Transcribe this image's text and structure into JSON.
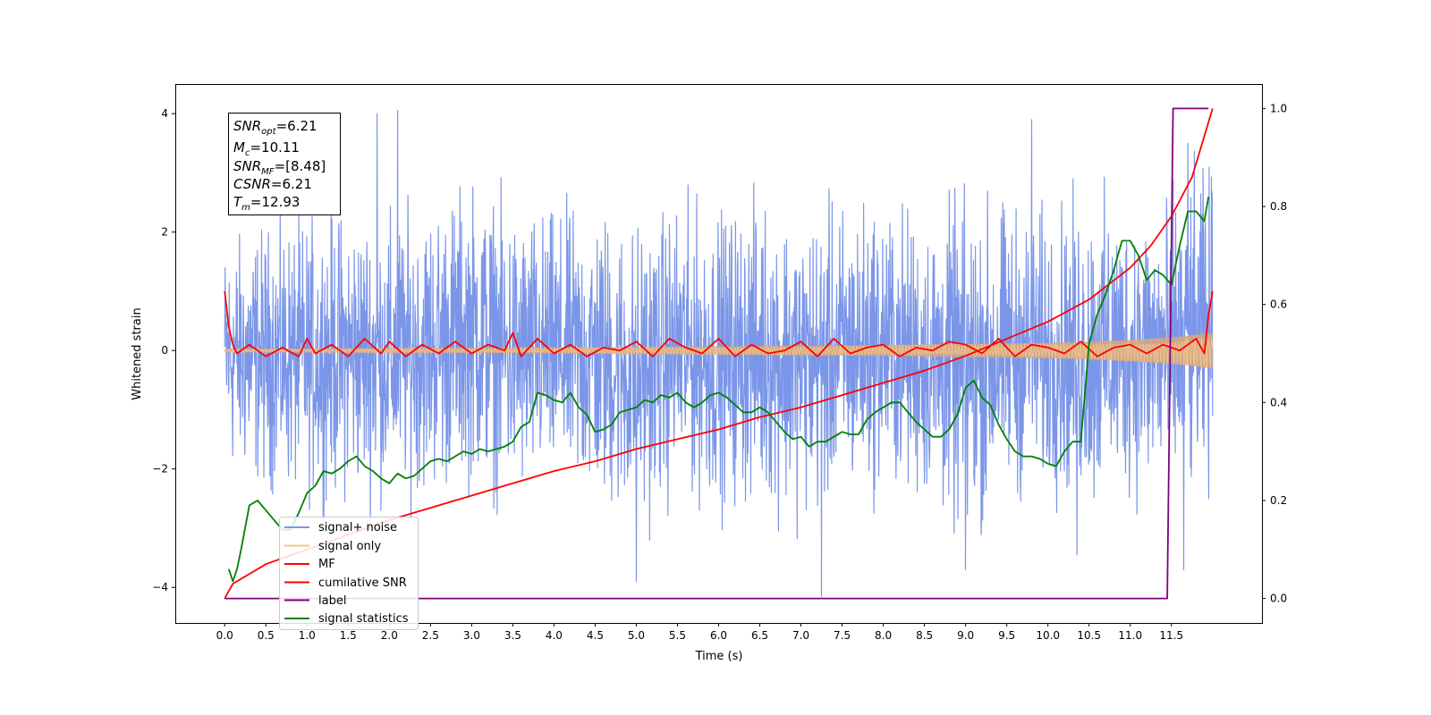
{
  "chart_data": {
    "type": "line",
    "xlabel": "Time (s)",
    "ylabel": "Whitened strain",
    "xlim": [
      -0.6,
      12.6
    ],
    "ylim": [
      -4.6,
      4.5
    ],
    "y2lim": [
      -0.05,
      1.05
    ],
    "x_ticks": [
      0.0,
      0.5,
      1.0,
      1.5,
      2.0,
      2.5,
      3.0,
      3.5,
      4.0,
      4.5,
      5.0,
      5.5,
      6.0,
      6.5,
      7.0,
      7.5,
      8.0,
      8.5,
      9.0,
      9.5,
      10.0,
      10.5,
      11.0,
      11.5
    ],
    "x_tick_labels": [
      "0.0",
      "0.5",
      "1.0",
      "1.5",
      "2.0",
      "2.5",
      "3.0",
      "3.5",
      "4.0",
      "4.5",
      "5.0",
      "5.5",
      "6.0",
      "6.5",
      "7.0",
      "7.5",
      "8.0",
      "8.5",
      "9.0",
      "9.5",
      "10.0",
      "10.5",
      "11.0",
      "11.5"
    ],
    "y_ticks": [
      -4,
      -2,
      0,
      2,
      4
    ],
    "y_tick_labels": [
      "−4",
      "−2",
      "0",
      "2",
      "4"
    ],
    "y2_ticks": [
      0.0,
      0.2,
      0.4,
      0.6,
      0.8,
      1.0
    ],
    "y2_tick_labels": [
      "0.0",
      "0.2",
      "0.4",
      "0.6",
      "0.8",
      "1.0"
    ],
    "grid": false,
    "legend_placement": "lower-left",
    "annotation": [
      {
        "var": "SNR",
        "sub": "opt",
        "value": "=6.21"
      },
      {
        "var": "M",
        "sub": "c",
        "value": "=10.11"
      },
      {
        "var": "SNR",
        "sub": "MF",
        "value": "=[8.48]"
      },
      {
        "var": "CSNR",
        "sub": "",
        "value": "=6.21"
      },
      {
        "var": "T",
        "sub": "m",
        "value": "=12.93"
      }
    ],
    "series": [
      {
        "name": "signal+ noise",
        "color": "#7b96e8",
        "axis": "left",
        "x_range": [
          0.0,
          12.0
        ],
        "band_upper": [
          2.2,
          2.5,
          2.6,
          2.8,
          2.7,
          2.9,
          3.3,
          2.8,
          2.7,
          2.9,
          2.6,
          2.9,
          2.8,
          3.0,
          2.8,
          2.9,
          3.0,
          2.7,
          3.1,
          2.9,
          2.8,
          3.1,
          2.9,
          3.1,
          3.6
        ],
        "band_lower": [
          -2.4,
          -2.7,
          -2.9,
          -2.9,
          -2.9,
          -2.8,
          -2.7,
          -3.0,
          -2.8,
          -3.1,
          -3.5,
          -2.9,
          -3.1,
          -3.0,
          -3.3,
          -3.0,
          -2.8,
          -3.0,
          -3.8,
          -2.9,
          -2.9,
          -3.2,
          -2.9,
          -3.1,
          -3.0
        ],
        "peaks_max": [
          [
            1.85,
            4.0
          ],
          [
            2.1,
            4.05
          ],
          [
            9.8,
            3.9
          ],
          [
            11.7,
            3.5
          ]
        ],
        "peaks_min": [
          [
            5.0,
            -3.9
          ],
          [
            7.25,
            -4.15
          ],
          [
            9.0,
            -3.7
          ],
          [
            10.35,
            -3.45
          ],
          [
            11.65,
            -3.7
          ]
        ]
      },
      {
        "name": "signal only",
        "color": "#f6c48a",
        "axis": "left",
        "x": [
          0.0,
          1.0,
          2.0,
          3.0,
          4.0,
          5.0,
          6.0,
          7.0,
          8.0,
          9.0,
          10.0,
          10.5,
          11.0,
          11.5,
          12.0
        ],
        "amplitude": [
          0.03,
          0.03,
          0.04,
          0.04,
          0.05,
          0.06,
          0.07,
          0.08,
          0.09,
          0.11,
          0.13,
          0.15,
          0.18,
          0.22,
          0.3
        ]
      },
      {
        "name": "MF",
        "color": "#ff0000",
        "axis": "left",
        "x": [
          0.0,
          0.05,
          0.1,
          0.15,
          0.3,
          0.5,
          0.7,
          0.9,
          1.0,
          1.1,
          1.3,
          1.5,
          1.7,
          1.9,
          2.0,
          2.2,
          2.4,
          2.6,
          2.8,
          3.0,
          3.2,
          3.4,
          3.5,
          3.6,
          3.8,
          4.0,
          4.2,
          4.4,
          4.6,
          4.8,
          5.0,
          5.2,
          5.4,
          5.6,
          5.8,
          6.0,
          6.2,
          6.4,
          6.6,
          6.8,
          7.0,
          7.2,
          7.4,
          7.6,
          7.8,
          8.0,
          8.2,
          8.4,
          8.6,
          8.8,
          9.0,
          9.2,
          9.4,
          9.6,
          9.8,
          10.0,
          10.2,
          10.4,
          10.6,
          10.8,
          11.0,
          11.2,
          11.4,
          11.6,
          11.8,
          11.9,
          11.95,
          12.0
        ],
        "y": [
          1.0,
          0.4,
          0.1,
          -0.05,
          0.1,
          -0.1,
          0.05,
          -0.1,
          0.2,
          -0.05,
          0.1,
          -0.1,
          0.2,
          -0.05,
          0.15,
          -0.1,
          0.1,
          -0.05,
          0.15,
          -0.05,
          0.1,
          0.0,
          0.3,
          -0.1,
          0.2,
          -0.05,
          0.1,
          -0.1,
          0.05,
          0.0,
          0.15,
          -0.1,
          0.2,
          0.05,
          -0.05,
          0.2,
          -0.1,
          0.1,
          -0.05,
          0.0,
          0.15,
          -0.1,
          0.2,
          -0.05,
          0.05,
          0.1,
          -0.1,
          0.05,
          0.0,
          0.15,
          0.1,
          -0.05,
          0.2,
          -0.1,
          0.1,
          0.05,
          -0.05,
          0.15,
          -0.1,
          0.05,
          0.1,
          -0.05,
          0.1,
          0.0,
          0.2,
          -0.05,
          0.6,
          1.0
        ]
      },
      {
        "name": "cumilative SNR",
        "color": "#ff0000",
        "axis": "right",
        "x": [
          0.0,
          0.1,
          0.3,
          0.5,
          1.0,
          1.5,
          2.0,
          2.5,
          3.0,
          3.5,
          4.0,
          4.5,
          5.0,
          5.5,
          6.0,
          6.5,
          7.0,
          7.5,
          8.0,
          8.5,
          9.0,
          9.5,
          10.0,
          10.5,
          11.0,
          11.25,
          11.5,
          11.75,
          12.0
        ],
        "y": [
          0.0,
          0.03,
          0.05,
          0.07,
          0.1,
          0.13,
          0.16,
          0.185,
          0.21,
          0.235,
          0.26,
          0.28,
          0.305,
          0.325,
          0.345,
          0.37,
          0.39,
          0.415,
          0.44,
          0.465,
          0.495,
          0.53,
          0.565,
          0.61,
          0.675,
          0.72,
          0.78,
          0.86,
          1.0
        ]
      },
      {
        "name": "label",
        "color": "#800080",
        "axis": "right",
        "x": [
          0.0,
          11.45,
          11.52,
          11.95
        ],
        "y": [
          0.0,
          0.0,
          1.0,
          1.0
        ]
      },
      {
        "name": "signal statistics",
        "color": "#008000",
        "axis": "right",
        "x": [
          0.05,
          0.1,
          0.15,
          0.2,
          0.3,
          0.4,
          0.5,
          0.6,
          0.7,
          0.8,
          0.9,
          1.0,
          1.1,
          1.2,
          1.3,
          1.4,
          1.5,
          1.6,
          1.7,
          1.8,
          1.9,
          2.0,
          2.1,
          2.2,
          2.3,
          2.4,
          2.5,
          2.6,
          2.7,
          2.8,
          2.9,
          3.0,
          3.1,
          3.2,
          3.3,
          3.4,
          3.5,
          3.6,
          3.7,
          3.8,
          3.9,
          4.0,
          4.1,
          4.2,
          4.3,
          4.4,
          4.5,
          4.6,
          4.7,
          4.8,
          4.9,
          5.0,
          5.1,
          5.2,
          5.3,
          5.4,
          5.5,
          5.6,
          5.7,
          5.8,
          5.9,
          6.0,
          6.1,
          6.2,
          6.3,
          6.4,
          6.5,
          6.6,
          6.7,
          6.8,
          6.9,
          7.0,
          7.1,
          7.2,
          7.3,
          7.4,
          7.5,
          7.6,
          7.7,
          7.8,
          7.9,
          8.0,
          8.1,
          8.2,
          8.3,
          8.4,
          8.5,
          8.6,
          8.7,
          8.8,
          8.9,
          9.0,
          9.1,
          9.2,
          9.3,
          9.4,
          9.5,
          9.6,
          9.7,
          9.8,
          9.9,
          10.0,
          10.1,
          10.2,
          10.3,
          10.4,
          10.5,
          10.6,
          10.7,
          10.8,
          10.9,
          11.0,
          11.1,
          11.2,
          11.3,
          11.4,
          11.5,
          11.6,
          11.7,
          11.8,
          11.9,
          11.95
        ],
        "y": [
          0.06,
          0.035,
          0.06,
          0.1,
          0.19,
          0.2,
          0.18,
          0.16,
          0.14,
          0.14,
          0.175,
          0.215,
          0.23,
          0.26,
          0.255,
          0.265,
          0.28,
          0.29,
          0.27,
          0.26,
          0.245,
          0.235,
          0.255,
          0.245,
          0.25,
          0.265,
          0.28,
          0.285,
          0.28,
          0.29,
          0.3,
          0.295,
          0.305,
          0.3,
          0.305,
          0.31,
          0.32,
          0.35,
          0.36,
          0.42,
          0.415,
          0.405,
          0.4,
          0.42,
          0.39,
          0.375,
          0.34,
          0.345,
          0.355,
          0.38,
          0.385,
          0.39,
          0.405,
          0.4,
          0.415,
          0.41,
          0.42,
          0.4,
          0.39,
          0.4,
          0.415,
          0.42,
          0.41,
          0.395,
          0.38,
          0.38,
          0.39,
          0.38,
          0.36,
          0.34,
          0.325,
          0.33,
          0.31,
          0.32,
          0.32,
          0.33,
          0.34,
          0.335,
          0.335,
          0.365,
          0.38,
          0.39,
          0.4,
          0.4,
          0.38,
          0.36,
          0.345,
          0.33,
          0.33,
          0.345,
          0.375,
          0.43,
          0.445,
          0.41,
          0.395,
          0.355,
          0.325,
          0.3,
          0.29,
          0.29,
          0.285,
          0.275,
          0.27,
          0.3,
          0.32,
          0.32,
          0.52,
          0.58,
          0.62,
          0.67,
          0.73,
          0.73,
          0.7,
          0.65,
          0.67,
          0.66,
          0.64,
          0.72,
          0.79,
          0.79,
          0.77,
          0.82
        ]
      }
    ]
  }
}
